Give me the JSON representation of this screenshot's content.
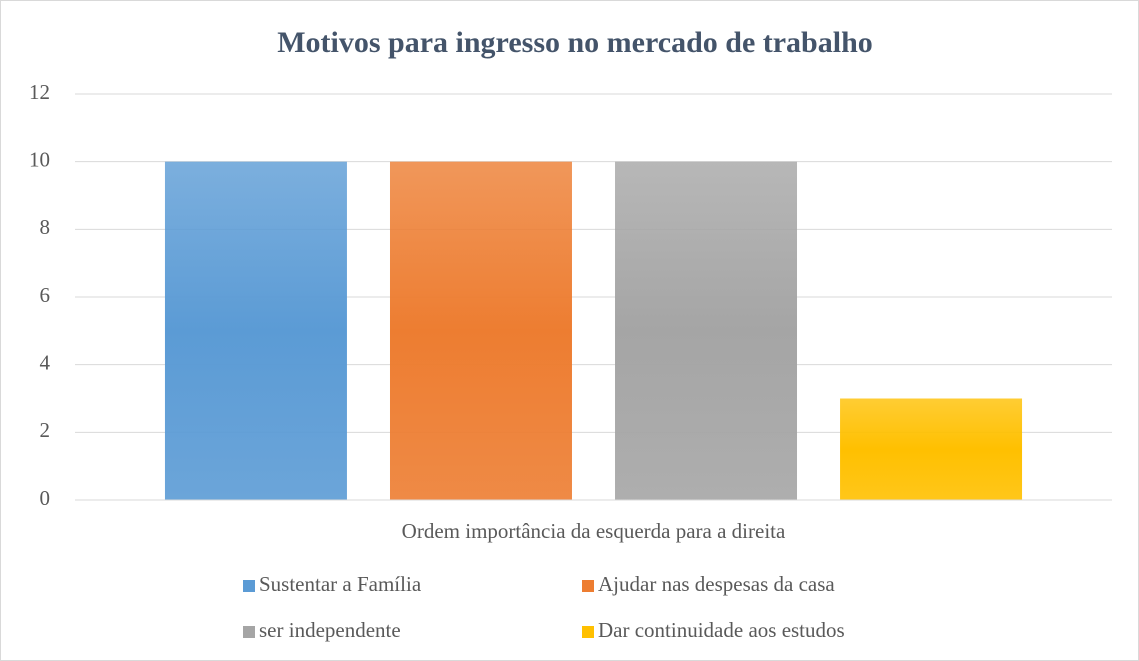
{
  "chart_data": {
    "type": "bar",
    "title": "Motivos para ingresso no mercado de trabalho",
    "categories": [
      "Ordem importância da esquerda para a direita"
    ],
    "series": [
      {
        "name": "Sustentar a Família",
        "color": "#5b9bd5",
        "values": [
          10
        ]
      },
      {
        "name": "Ajudar nas despesas da casa",
        "color": "#ed7d31",
        "values": [
          10
        ]
      },
      {
        "name": "ser independente",
        "color": "#a5a5a5",
        "values": [
          10
        ]
      },
      {
        "name": "Dar continuidade aos estudos",
        "color": "#ffc000",
        "values": [
          3
        ]
      }
    ],
    "ylim": [
      0,
      12
    ],
    "yticks": [
      0,
      2,
      4,
      6,
      8,
      10,
      12
    ],
    "grid": true,
    "legend": "bottom"
  }
}
